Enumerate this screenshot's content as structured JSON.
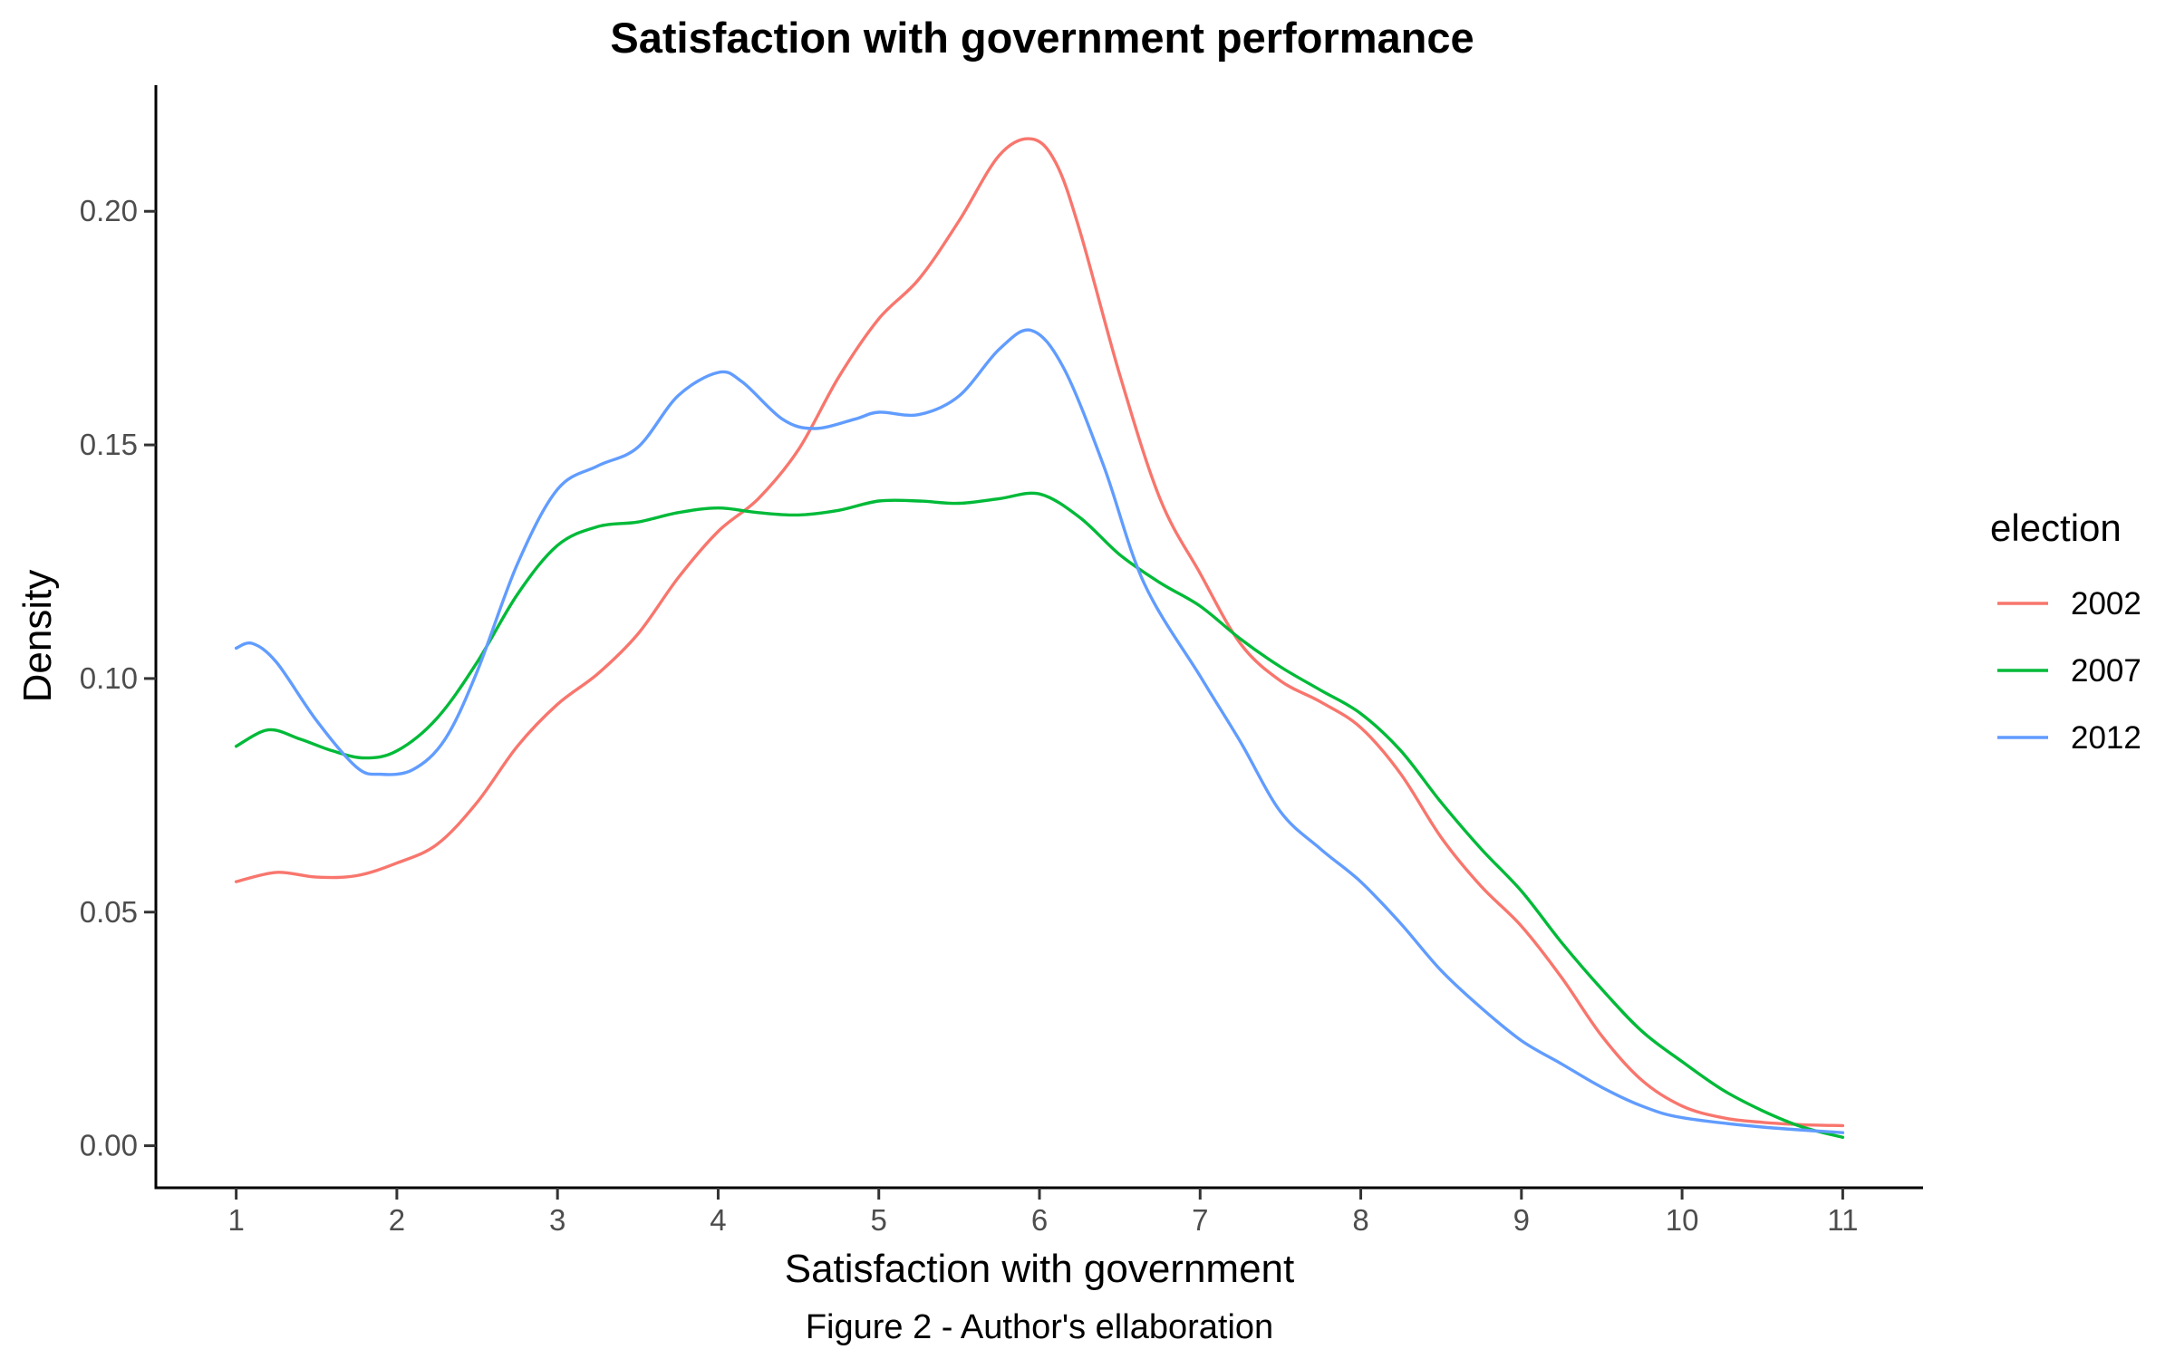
{
  "chart_data": {
    "type": "line",
    "title": "Satisfaction with government performance",
    "xlabel": "Satisfaction with government",
    "ylabel": "Density",
    "caption": "Figure 2 - Author's ellaboration",
    "xlim": [
      0.5,
      11.5
    ],
    "ylim": [
      -0.009,
      0.227
    ],
    "x_ticks": [
      1,
      2,
      3,
      4,
      5,
      6,
      7,
      8,
      9,
      10,
      11
    ],
    "y_ticks": [
      0.0,
      0.05,
      0.1,
      0.15,
      0.2
    ],
    "y_tick_labels": [
      "0.00",
      "0.05",
      "0.10",
      "0.15",
      "0.20"
    ],
    "grid": false,
    "legend": {
      "title": "election",
      "position": "right"
    },
    "series": [
      {
        "name": "2002",
        "color": "#F8766D",
        "x": [
          1,
          1.25,
          1.5,
          1.75,
          2,
          2.25,
          2.5,
          2.75,
          3,
          3.25,
          3.5,
          3.75,
          4,
          4.25,
          4.5,
          4.75,
          5,
          5.25,
          5.5,
          5.75,
          5.95,
          6.1,
          6.25,
          6.5,
          6.75,
          7,
          7.25,
          7.5,
          7.75,
          8,
          8.25,
          8.5,
          8.75,
          9,
          9.25,
          9.5,
          9.75,
          10,
          10.25,
          10.5,
          10.75,
          11
        ],
        "y": [
          0.0565,
          0.0585,
          0.0575,
          0.0578,
          0.0605,
          0.0645,
          0.0735,
          0.0855,
          0.0945,
          0.101,
          0.1095,
          0.1215,
          0.1315,
          0.1385,
          0.149,
          0.1645,
          0.177,
          0.1855,
          0.198,
          0.212,
          0.2155,
          0.2105,
          0.196,
          0.165,
          0.1385,
          0.1225,
          0.1075,
          0.0995,
          0.095,
          0.0895,
          0.0795,
          0.066,
          0.0555,
          0.047,
          0.036,
          0.0235,
          0.014,
          0.0085,
          0.006,
          0.005,
          0.0045,
          0.0043
        ]
      },
      {
        "name": "2007",
        "color": "#00BA38",
        "x": [
          1,
          1.2,
          1.4,
          1.6,
          1.8,
          2,
          2.25,
          2.5,
          2.75,
          3,
          3.25,
          3.5,
          3.75,
          4,
          4.25,
          4.5,
          4.75,
          5,
          5.25,
          5.5,
          5.75,
          6,
          6.25,
          6.5,
          6.75,
          7,
          7.25,
          7.5,
          7.75,
          8,
          8.25,
          8.5,
          8.75,
          9,
          9.25,
          9.5,
          9.75,
          10,
          10.25,
          10.5,
          10.75,
          11
        ],
        "y": [
          0.0855,
          0.089,
          0.087,
          0.0845,
          0.083,
          0.0845,
          0.0915,
          0.1035,
          0.118,
          0.1285,
          0.1325,
          0.1335,
          0.1355,
          0.1365,
          0.1355,
          0.135,
          0.136,
          0.138,
          0.138,
          0.1375,
          0.1385,
          0.1395,
          0.1345,
          0.1265,
          0.1205,
          0.1155,
          0.1085,
          0.1025,
          0.0975,
          0.0925,
          0.0845,
          0.0735,
          0.0635,
          0.0545,
          0.0435,
          0.0335,
          0.0245,
          0.018,
          0.012,
          0.0075,
          0.004,
          0.0018
        ]
      },
      {
        "name": "2012",
        "color": "#619CFF",
        "x": [
          1,
          1.1,
          1.25,
          1.5,
          1.75,
          1.9,
          2.1,
          2.3,
          2.5,
          2.75,
          3,
          3.25,
          3.5,
          3.75,
          4,
          4.15,
          4.4,
          4.6,
          4.85,
          5,
          5.25,
          5.5,
          5.75,
          5.95,
          6.15,
          6.4,
          6.65,
          7,
          7.25,
          7.5,
          7.75,
          8,
          8.25,
          8.5,
          8.75,
          9,
          9.25,
          9.5,
          9.75,
          10,
          10.5,
          11
        ],
        "y": [
          0.1065,
          0.1075,
          0.1035,
          0.091,
          0.081,
          0.0795,
          0.0805,
          0.087,
          0.1015,
          0.1245,
          0.1405,
          0.1455,
          0.1495,
          0.1605,
          0.1655,
          0.1635,
          0.1555,
          0.1535,
          0.1555,
          0.157,
          0.1565,
          0.1605,
          0.1705,
          0.1745,
          0.1665,
          0.1455,
          0.1205,
          0.1005,
          0.0865,
          0.0715,
          0.0635,
          0.0565,
          0.0475,
          0.0375,
          0.0295,
          0.0225,
          0.0175,
          0.0125,
          0.0085,
          0.006,
          0.004,
          0.0028
        ]
      }
    ]
  }
}
